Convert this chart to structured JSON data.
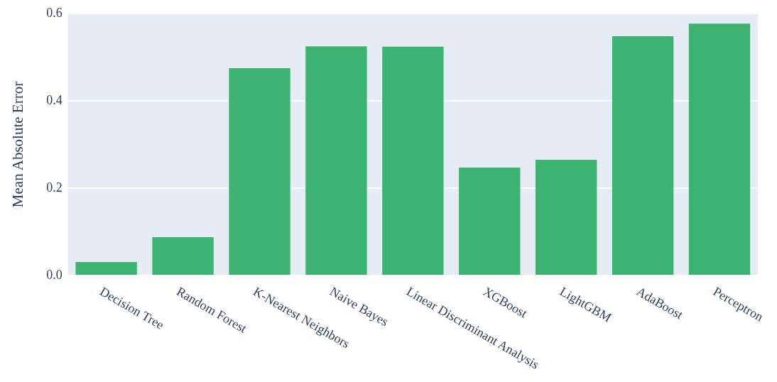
{
  "chart_data": {
    "type": "bar",
    "ylabel": "Mean Absolute Error",
    "categories": [
      "Decision Tree",
      "Random Forest",
      "K-Nearest Neighbors",
      "Naive Bayes",
      "Linear Discriminant Analysis",
      "XGBoost",
      "LightGBM",
      "AdaBoost",
      "Perceptron"
    ],
    "values": [
      0.031,
      0.088,
      0.475,
      0.525,
      0.524,
      0.247,
      0.265,
      0.548,
      0.577
    ],
    "color": "#3cb371",
    "ylim": [
      0,
      0.6
    ],
    "yticks": [
      {
        "value": 0,
        "label": "0.0"
      },
      {
        "value": 0.2,
        "label": "0.2"
      },
      {
        "value": 0.4,
        "label": "0.4"
      },
      {
        "value": 0.6,
        "label": "0.6"
      }
    ],
    "grid": "y",
    "legend": false
  }
}
